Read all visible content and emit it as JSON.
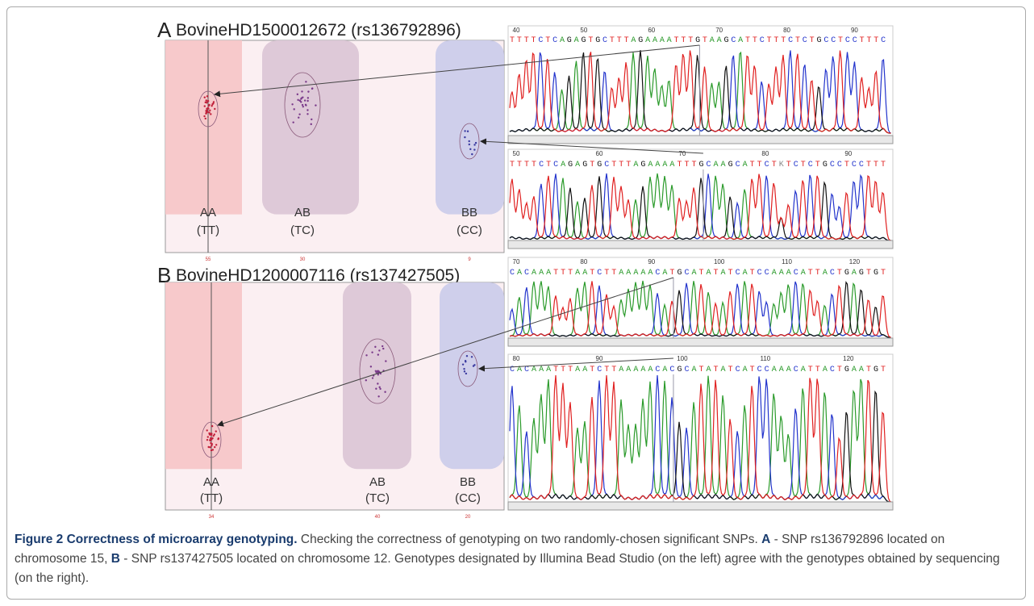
{
  "panels": [
    {
      "label": "A",
      "title": "BovineHD1500012672 (rs136792896)",
      "genotypes": [
        {
          "call": "AA",
          "bases": "(TT)",
          "count": 55
        },
        {
          "call": "AB",
          "bases": "(TC)",
          "count": 30
        },
        {
          "call": "BB",
          "bases": "(CC)",
          "count": 9
        }
      ],
      "traces": [
        {
          "ruler": [
            40,
            50,
            60,
            70,
            80,
            90
          ],
          "sequence": "TTTTCTCAGAGTGCTTTAGAAAATTTGTAAGCATTCTTTCTCTGCCTCCTTTC"
        },
        {
          "ruler": [
            50,
            60,
            70,
            80,
            90
          ],
          "sequence": "TTTTCTCAGAGTGCTTTAGAAAATTTGCAAGCATTCTKTCTCTGCCTCCTTT"
        }
      ]
    },
    {
      "label": "B",
      "title": "BovineHD1200007116 (rs137427505)",
      "genotypes": [
        {
          "call": "AA",
          "bases": "(TT)",
          "count": 34
        },
        {
          "call": "AB",
          "bases": "(TC)",
          "count": 40
        },
        {
          "call": "BB",
          "bases": "(CC)",
          "count": 20
        }
      ],
      "traces": [
        {
          "ruler": [
            70,
            80,
            90,
            100,
            110,
            120
          ],
          "sequence": "CACAAATTTAATCTTAAAAACATGCATATATCATCCAAACATTACTGAGTGT"
        },
        {
          "ruler": [
            80,
            90,
            100,
            110,
            120
          ],
          "sequence": "CACAAATTTAATCTTAAAAACACGCATATATCATCCAAACATTACTGAATGT"
        }
      ]
    }
  ],
  "caption": {
    "title": "Figure 2 Correctness of microarray genotyping.",
    "parts": [
      "Checking the correctness of genotyping on two randomly-chosen significant SNPs. ",
      "A",
      " - SNP rs136792896 located on chromosome 15, ",
      "B",
      " - SNP rs137427505 located on chromosome 12. Genotypes designated by Illumina Bead Studio (on the left) agree with the genotypes obtained by sequencing (on the right)."
    ]
  }
}
